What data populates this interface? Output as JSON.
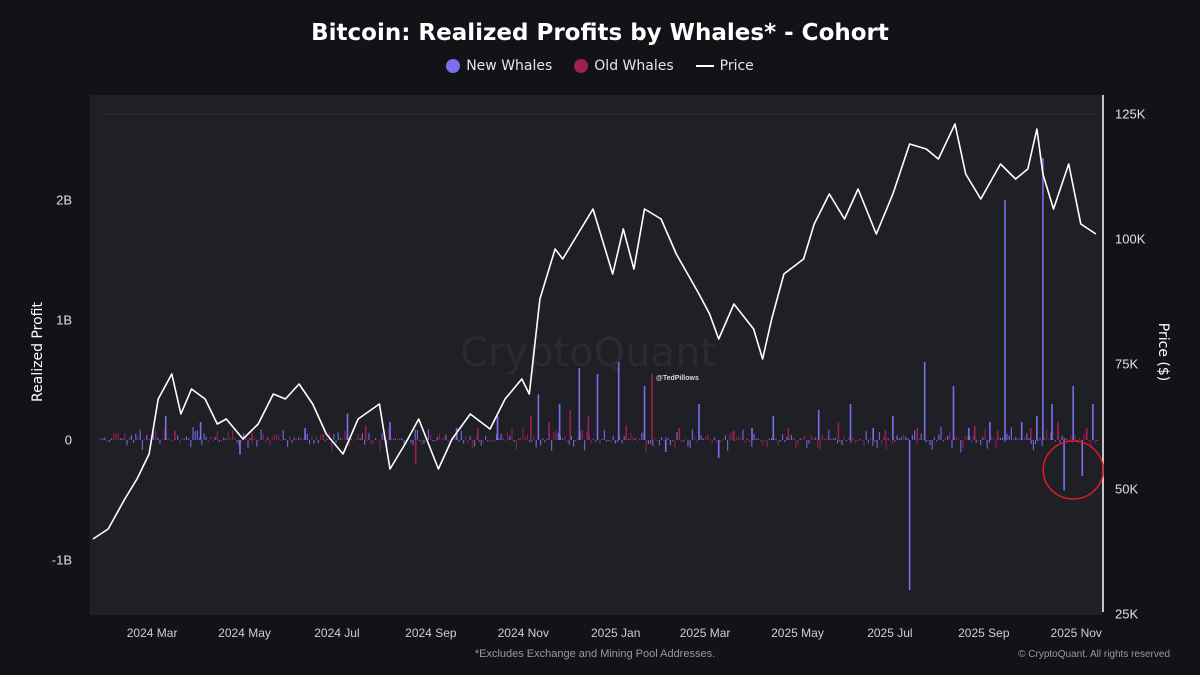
{
  "chart_data": {
    "type": "bar",
    "title": "Bitcoin: Realized Profits by Whales* - Cohort",
    "footnote": "*Excludes Exchange and Mining Pool Addresses.",
    "copyright": "© CryptoQuant. All rights reserved",
    "watermark": "CryptoQuant",
    "handle": "@TedPillows",
    "legend": [
      "New Whales",
      "Old Whales",
      "Price"
    ],
    "legend_position": "top-center",
    "colors": {
      "new_whales": "#7b6ff0",
      "old_whales": "#9e1f52",
      "price": "#ffffff",
      "highlight": "#e01b24"
    },
    "ylabel": "Realized Profit",
    "ylabel_right": "Price ($)",
    "y_ticks": [
      "-1B",
      "0",
      "1B",
      "2B"
    ],
    "ylim": [
      -1.45,
      2.75
    ],
    "y2_ticks": [
      "25K",
      "50K",
      "75K",
      "100K",
      "125K"
    ],
    "y2lim": [
      25000,
      125000
    ],
    "x_ticks": [
      "2024 Mar",
      "2024 May",
      "2024 Jul",
      "2024 Sep",
      "2024 Nov",
      "2025 Jan",
      "2025 Mar",
      "2025 May",
      "2025 Jul",
      "2025 Sep",
      "2025 Nov"
    ],
    "xlim": [
      "2024-01-20",
      "2025-11-18"
    ],
    "grid": false,
    "series": [
      {
        "name": "Price",
        "kind": "line",
        "x": [
          "2024-01-22",
          "2024-02-01",
          "2024-02-12",
          "2024-02-20",
          "2024-02-28",
          "2024-03-05",
          "2024-03-14",
          "2024-03-20",
          "2024-03-27",
          "2024-04-05",
          "2024-04-13",
          "2024-04-19",
          "2024-04-30",
          "2024-05-10",
          "2024-05-20",
          "2024-05-28",
          "2024-06-06",
          "2024-06-15",
          "2024-06-24",
          "2024-07-05",
          "2024-07-15",
          "2024-07-29",
          "2024-08-05",
          "2024-08-15",
          "2024-08-24",
          "2024-09-06",
          "2024-09-15",
          "2024-09-27",
          "2024-10-10",
          "2024-10-20",
          "2024-10-31",
          "2024-11-05",
          "2024-11-12",
          "2024-11-22",
          "2024-11-27",
          "2024-12-05",
          "2024-12-17",
          "2024-12-30",
          "2025-01-06",
          "2025-01-13",
          "2025-01-20",
          "2025-01-31",
          "2025-02-10",
          "2025-02-25",
          "2025-03-04",
          "2025-03-10",
          "2025-03-20",
          "2025-04-02",
          "2025-04-08",
          "2025-04-14",
          "2025-04-22",
          "2025-05-05",
          "2025-05-12",
          "2025-05-22",
          "2025-06-01",
          "2025-06-10",
          "2025-06-22",
          "2025-07-03",
          "2025-07-14",
          "2025-07-25",
          "2025-08-02",
          "2025-08-13",
          "2025-08-20",
          "2025-08-30",
          "2025-09-12",
          "2025-09-22",
          "2025-09-30",
          "2025-10-06",
          "2025-10-10",
          "2025-10-17",
          "2025-10-27",
          "2025-11-04",
          "2025-11-14"
        ],
        "y": [
          40000,
          42000,
          48000,
          52000,
          57000,
          68000,
          73000,
          65000,
          70000,
          68000,
          63000,
          64000,
          60000,
          63000,
          69000,
          68000,
          71000,
          67000,
          61000,
          57000,
          64000,
          67000,
          54000,
          59000,
          64000,
          54000,
          60000,
          65000,
          62000,
          68000,
          72000,
          69000,
          88000,
          98000,
          96000,
          100000,
          106000,
          93000,
          102000,
          94000,
          106000,
          104000,
          97000,
          89000,
          85000,
          80000,
          87000,
          82000,
          76000,
          84000,
          93000,
          96000,
          103000,
          109000,
          104000,
          110000,
          101000,
          109000,
          119000,
          118000,
          116000,
          123000,
          113000,
          108000,
          115000,
          112000,
          114000,
          122000,
          113000,
          106000,
          115000,
          103000,
          101000
        ]
      },
      {
        "name": "New Whales",
        "kind": "bar",
        "x": [
          "2024-03-10",
          "2024-04-02",
          "2024-04-28",
          "2024-06-10",
          "2024-07-08",
          "2024-08-05",
          "2024-09-18",
          "2024-10-15",
          "2024-11-11",
          "2024-11-25",
          "2024-12-08",
          "2024-12-20",
          "2025-01-03",
          "2025-01-20",
          "2025-02-03",
          "2025-02-25",
          "2025-03-10",
          "2025-04-01",
          "2025-04-15",
          "2025-05-15",
          "2025-06-05",
          "2025-06-20",
          "2025-07-03",
          "2025-07-14",
          "2025-07-24",
          "2025-08-12",
          "2025-08-22",
          "2025-09-05",
          "2025-09-15",
          "2025-09-26",
          "2025-10-06",
          "2025-10-10",
          "2025-10-16",
          "2025-10-24",
          "2025-10-30",
          "2025-11-05",
          "2025-11-12"
        ],
        "y": [
          0.2,
          0.15,
          -0.12,
          0.1,
          0.22,
          0.15,
          0.1,
          0.2,
          0.38,
          0.3,
          0.6,
          0.55,
          0.65,
          0.45,
          -0.1,
          0.3,
          -0.15,
          0.1,
          0.2,
          0.25,
          0.3,
          0.1,
          0.2,
          -1.25,
          0.65,
          0.45,
          0.1,
          0.15,
          2.0,
          0.15,
          0.2,
          2.35,
          0.3,
          -0.42,
          0.45,
          -0.3,
          0.3
        ]
      },
      {
        "name": "Old Whales",
        "kind": "bar",
        "x": [
          "2024-03-16",
          "2024-05-06",
          "2024-06-22",
          "2024-07-20",
          "2024-08-22",
          "2024-10-02",
          "2024-11-06",
          "2024-11-18",
          "2024-12-02",
          "2024-12-14",
          "2025-01-08",
          "2025-01-25",
          "2025-02-12",
          "2025-03-20",
          "2025-04-25",
          "2025-05-28",
          "2025-06-28",
          "2025-07-19",
          "2025-08-26",
          "2025-09-10",
          "2025-10-02",
          "2025-10-20",
          "2025-11-08"
        ],
        "y": [
          0.08,
          0.06,
          0.05,
          0.12,
          -0.2,
          0.1,
          0.2,
          0.15,
          0.25,
          0.2,
          0.12,
          0.55,
          0.1,
          0.08,
          0.1,
          0.15,
          0.08,
          0.1,
          0.12,
          0.08,
          0.1,
          0.15,
          0.1
        ]
      }
    ]
  }
}
